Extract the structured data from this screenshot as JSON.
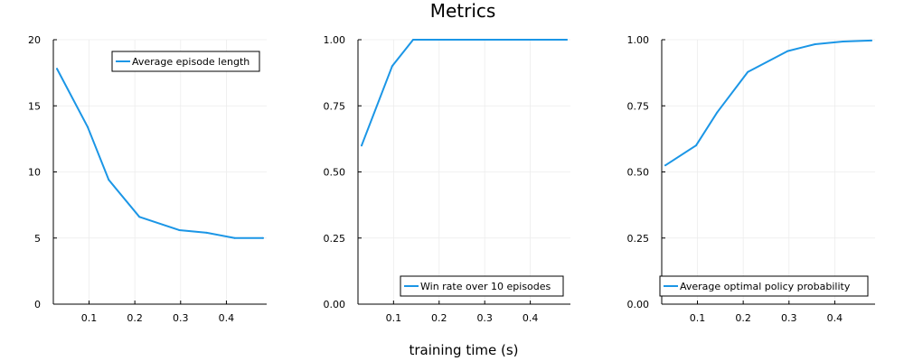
{
  "figure": {
    "title": "Metrics",
    "xlabel": "training time (s)"
  },
  "style": {
    "line_color": "#1b96e6",
    "grid_color": "#ececec",
    "axis_color": "#000000"
  },
  "chart_data": [
    {
      "type": "line",
      "title": "",
      "xlabel": "",
      "ylabel": "",
      "xlim": [
        0.022,
        0.488
      ],
      "ylim": [
        0,
        20
      ],
      "x_ticks": [
        0.1,
        0.2,
        0.3,
        0.4
      ],
      "x_tick_labels": [
        "0.1",
        "0.2",
        "0.3",
        "0.4"
      ],
      "y_ticks": [
        0,
        5,
        10,
        15,
        20
      ],
      "y_tick_labels": [
        "0",
        "5",
        "10",
        "15",
        "20"
      ],
      "grid": true,
      "legend_position": "top-right",
      "series": [
        {
          "name": "Average episode length",
          "x": [
            0.03,
            0.097,
            0.143,
            0.21,
            0.297,
            0.357,
            0.418,
            0.48
          ],
          "y": [
            17.8,
            13.4,
            9.4,
            6.6,
            5.6,
            5.4,
            5.0,
            5.0
          ]
        }
      ]
    },
    {
      "type": "line",
      "title": "",
      "xlabel": "",
      "ylabel": "",
      "xlim": [
        0.022,
        0.488
      ],
      "ylim": [
        0,
        1.0
      ],
      "x_ticks": [
        0.1,
        0.2,
        0.3,
        0.4
      ],
      "x_tick_labels": [
        "0.1",
        "0.2",
        "0.3",
        "0.4"
      ],
      "y_ticks": [
        0,
        0.25,
        0.5,
        0.75,
        1.0
      ],
      "y_tick_labels": [
        "0.00",
        "0.25",
        "0.50",
        "0.75",
        "1.00"
      ],
      "grid": true,
      "legend_position": "bottom-right",
      "series": [
        {
          "name": "Win rate over 10 episodes",
          "x": [
            0.03,
            0.097,
            0.143,
            0.21,
            0.297,
            0.357,
            0.418,
            0.48
          ],
          "y": [
            0.6,
            0.9,
            1.0,
            1.0,
            1.0,
            1.0,
            1.0,
            1.0
          ]
        }
      ]
    },
    {
      "type": "line",
      "title": "",
      "xlabel": "",
      "ylabel": "",
      "xlim": [
        0.022,
        0.488
      ],
      "ylim": [
        0,
        1.0
      ],
      "x_ticks": [
        0.1,
        0.2,
        0.3,
        0.4
      ],
      "x_tick_labels": [
        "0.1",
        "0.2",
        "0.3",
        "0.4"
      ],
      "y_ticks": [
        0,
        0.25,
        0.5,
        0.75,
        1.0
      ],
      "y_tick_labels": [
        "0.00",
        "0.25",
        "0.50",
        "0.75",
        "1.00"
      ],
      "grid": true,
      "legend_position": "bottom-right",
      "series": [
        {
          "name": "Average optimal policy probability",
          "x": [
            0.03,
            0.097,
            0.143,
            0.21,
            0.297,
            0.357,
            0.418,
            0.48
          ],
          "y": [
            0.525,
            0.6,
            0.725,
            0.878,
            0.957,
            0.983,
            0.993,
            0.997
          ]
        }
      ]
    }
  ]
}
